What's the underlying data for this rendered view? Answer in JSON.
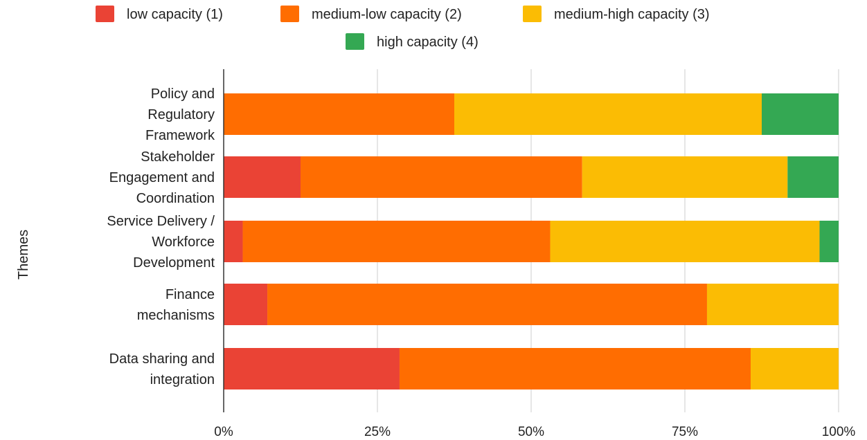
{
  "chart_data": {
    "type": "bar",
    "orientation": "horizontal",
    "stacked": "percent",
    "ylabel": "Themes",
    "xlabel": "",
    "xlim": [
      0,
      100
    ],
    "x_ticks": [
      "0%",
      "25%",
      "50%",
      "75%",
      "100%"
    ],
    "grid": true,
    "legend_position": "top",
    "categories": [
      [
        "Policy and",
        "Regulatory",
        "Framework"
      ],
      [
        "Stakeholder",
        "Engagement and",
        "Coordination"
      ],
      [
        "Service Delivery /",
        "Workforce",
        "Development"
      ],
      [
        "Finance",
        "mechanisms"
      ],
      [
        "Data sharing and",
        "integration"
      ]
    ],
    "series": [
      {
        "name": "low capacity (1)",
        "color": "#ea4335",
        "values": [
          0,
          12.5,
          3.1,
          7.1,
          28.6
        ]
      },
      {
        "name": "medium-low capacity (2)",
        "color": "#ff6d01",
        "values": [
          37.5,
          45.8,
          50.0,
          71.5,
          57.1
        ]
      },
      {
        "name": "medium-high capacity (3)",
        "color": "#fbbc04",
        "values": [
          50.0,
          33.4,
          43.8,
          21.4,
          14.3
        ]
      },
      {
        "name": "high capacity (4)",
        "color": "#34a853",
        "values": [
          12.5,
          8.3,
          3.1,
          0,
          0
        ]
      }
    ]
  }
}
